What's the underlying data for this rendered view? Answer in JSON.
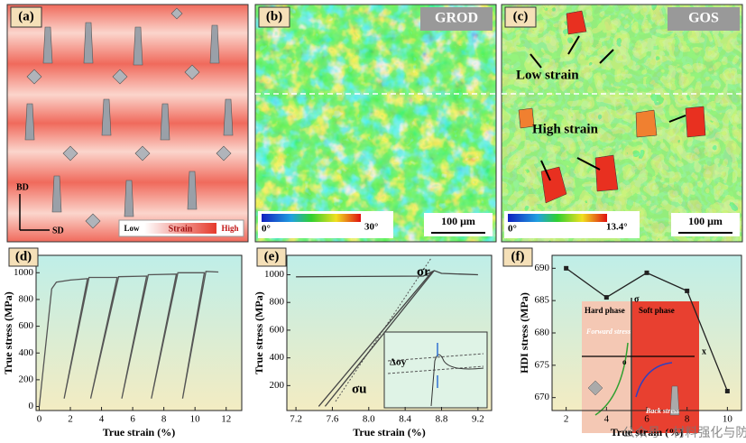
{
  "images": {
    "a": {
      "label": "(a)",
      "bd": "BD",
      "sd": "SD",
      "low": "Low",
      "strain": "Strain",
      "high": "High"
    },
    "b": {
      "label": "(b)",
      "map": "GROD",
      "min": "0°",
      "max": "30°",
      "scale": "100 μm"
    },
    "c": {
      "label": "(c)",
      "map": "GOS",
      "low_strain": "Low strain",
      "high_strain": "High strain",
      "min": "0°",
      "max": "13.4°",
      "scale": "100 μm"
    }
  },
  "watermark": "公众号 · 材料强化与防护",
  "chart_data": [
    {
      "type": "line",
      "panel": "(d)",
      "xlabel": "True strain (%)",
      "ylabel": "True stress (MPa)",
      "xlim": [
        -0.2,
        13
      ],
      "ylim": [
        -30,
        1130
      ],
      "xticks": [
        0,
        2,
        4,
        6,
        8,
        10,
        12
      ],
      "yticks": [
        0,
        200,
        400,
        600,
        800,
        1000
      ],
      "series": [
        {
          "color": "#555555",
          "x": [
            0,
            0.8,
            1.1,
            2,
            3.1,
            1.6,
            3.2,
            5.0,
            3.3,
            5.1,
            6.9,
            5.3,
            7.0,
            8.8,
            7.2,
            8.9,
            10.6,
            9.2,
            10.7,
            11.5
          ],
          "values": [
            0,
            880,
            930,
            945,
            955,
            60,
            965,
            965,
            60,
            970,
            975,
            60,
            985,
            990,
            60,
            1000,
            1000,
            60,
            1010,
            1005
          ]
        }
      ]
    },
    {
      "type": "line",
      "panel": "(e)",
      "xlabel": "True strain (%)",
      "ylabel": "True stress (MPa)",
      "xlim": [
        7.1,
        9.35
      ],
      "ylim": [
        20,
        1140
      ],
      "xticks": [
        7.2,
        7.6,
        {
          "value": 8,
          "label": "8.0"
        },
        8.4,
        8.8,
        9.2
      ],
      "yticks": [
        200,
        400,
        600,
        800,
        1000
      ],
      "series": [
        {
          "color": "#444444",
          "x": [
            7.2,
            8.6,
            8.72,
            8.8,
            9.2
          ],
          "values": [
            985,
            990,
            1030,
            1010,
            1000
          ]
        },
        {
          "color": "#444444",
          "x": [
            8.7,
            7.45
          ],
          "values": [
            1025,
            50
          ]
        },
        {
          "color": "#444444",
          "x": [
            7.52,
            8.72
          ],
          "values": [
            50,
            1030
          ]
        }
      ],
      "annotations": [
        "σr",
        "σu",
        "Δσy"
      ]
    },
    {
      "type": "line",
      "panel": "(f)",
      "xlabel": "True strain (%)",
      "ylabel": "HDI stress (MPa)",
      "xlim": [
        1.3,
        10.7
      ],
      "ylim": [
        668,
        692
      ],
      "xticks": [
        2,
        4,
        6,
        8,
        10
      ],
      "yticks": [
        670,
        675,
        680,
        685,
        690
      ],
      "marker": "square",
      "series": [
        {
          "color": "#222222",
          "x": [
            2,
            4,
            6,
            8,
            10
          ],
          "values": [
            690,
            685.5,
            689.3,
            686.5,
            671
          ]
        }
      ],
      "annotations": [
        "Hard phase",
        "Soft phase",
        "Forward stress",
        "Back stress",
        "σ",
        "x",
        "o"
      ]
    }
  ]
}
